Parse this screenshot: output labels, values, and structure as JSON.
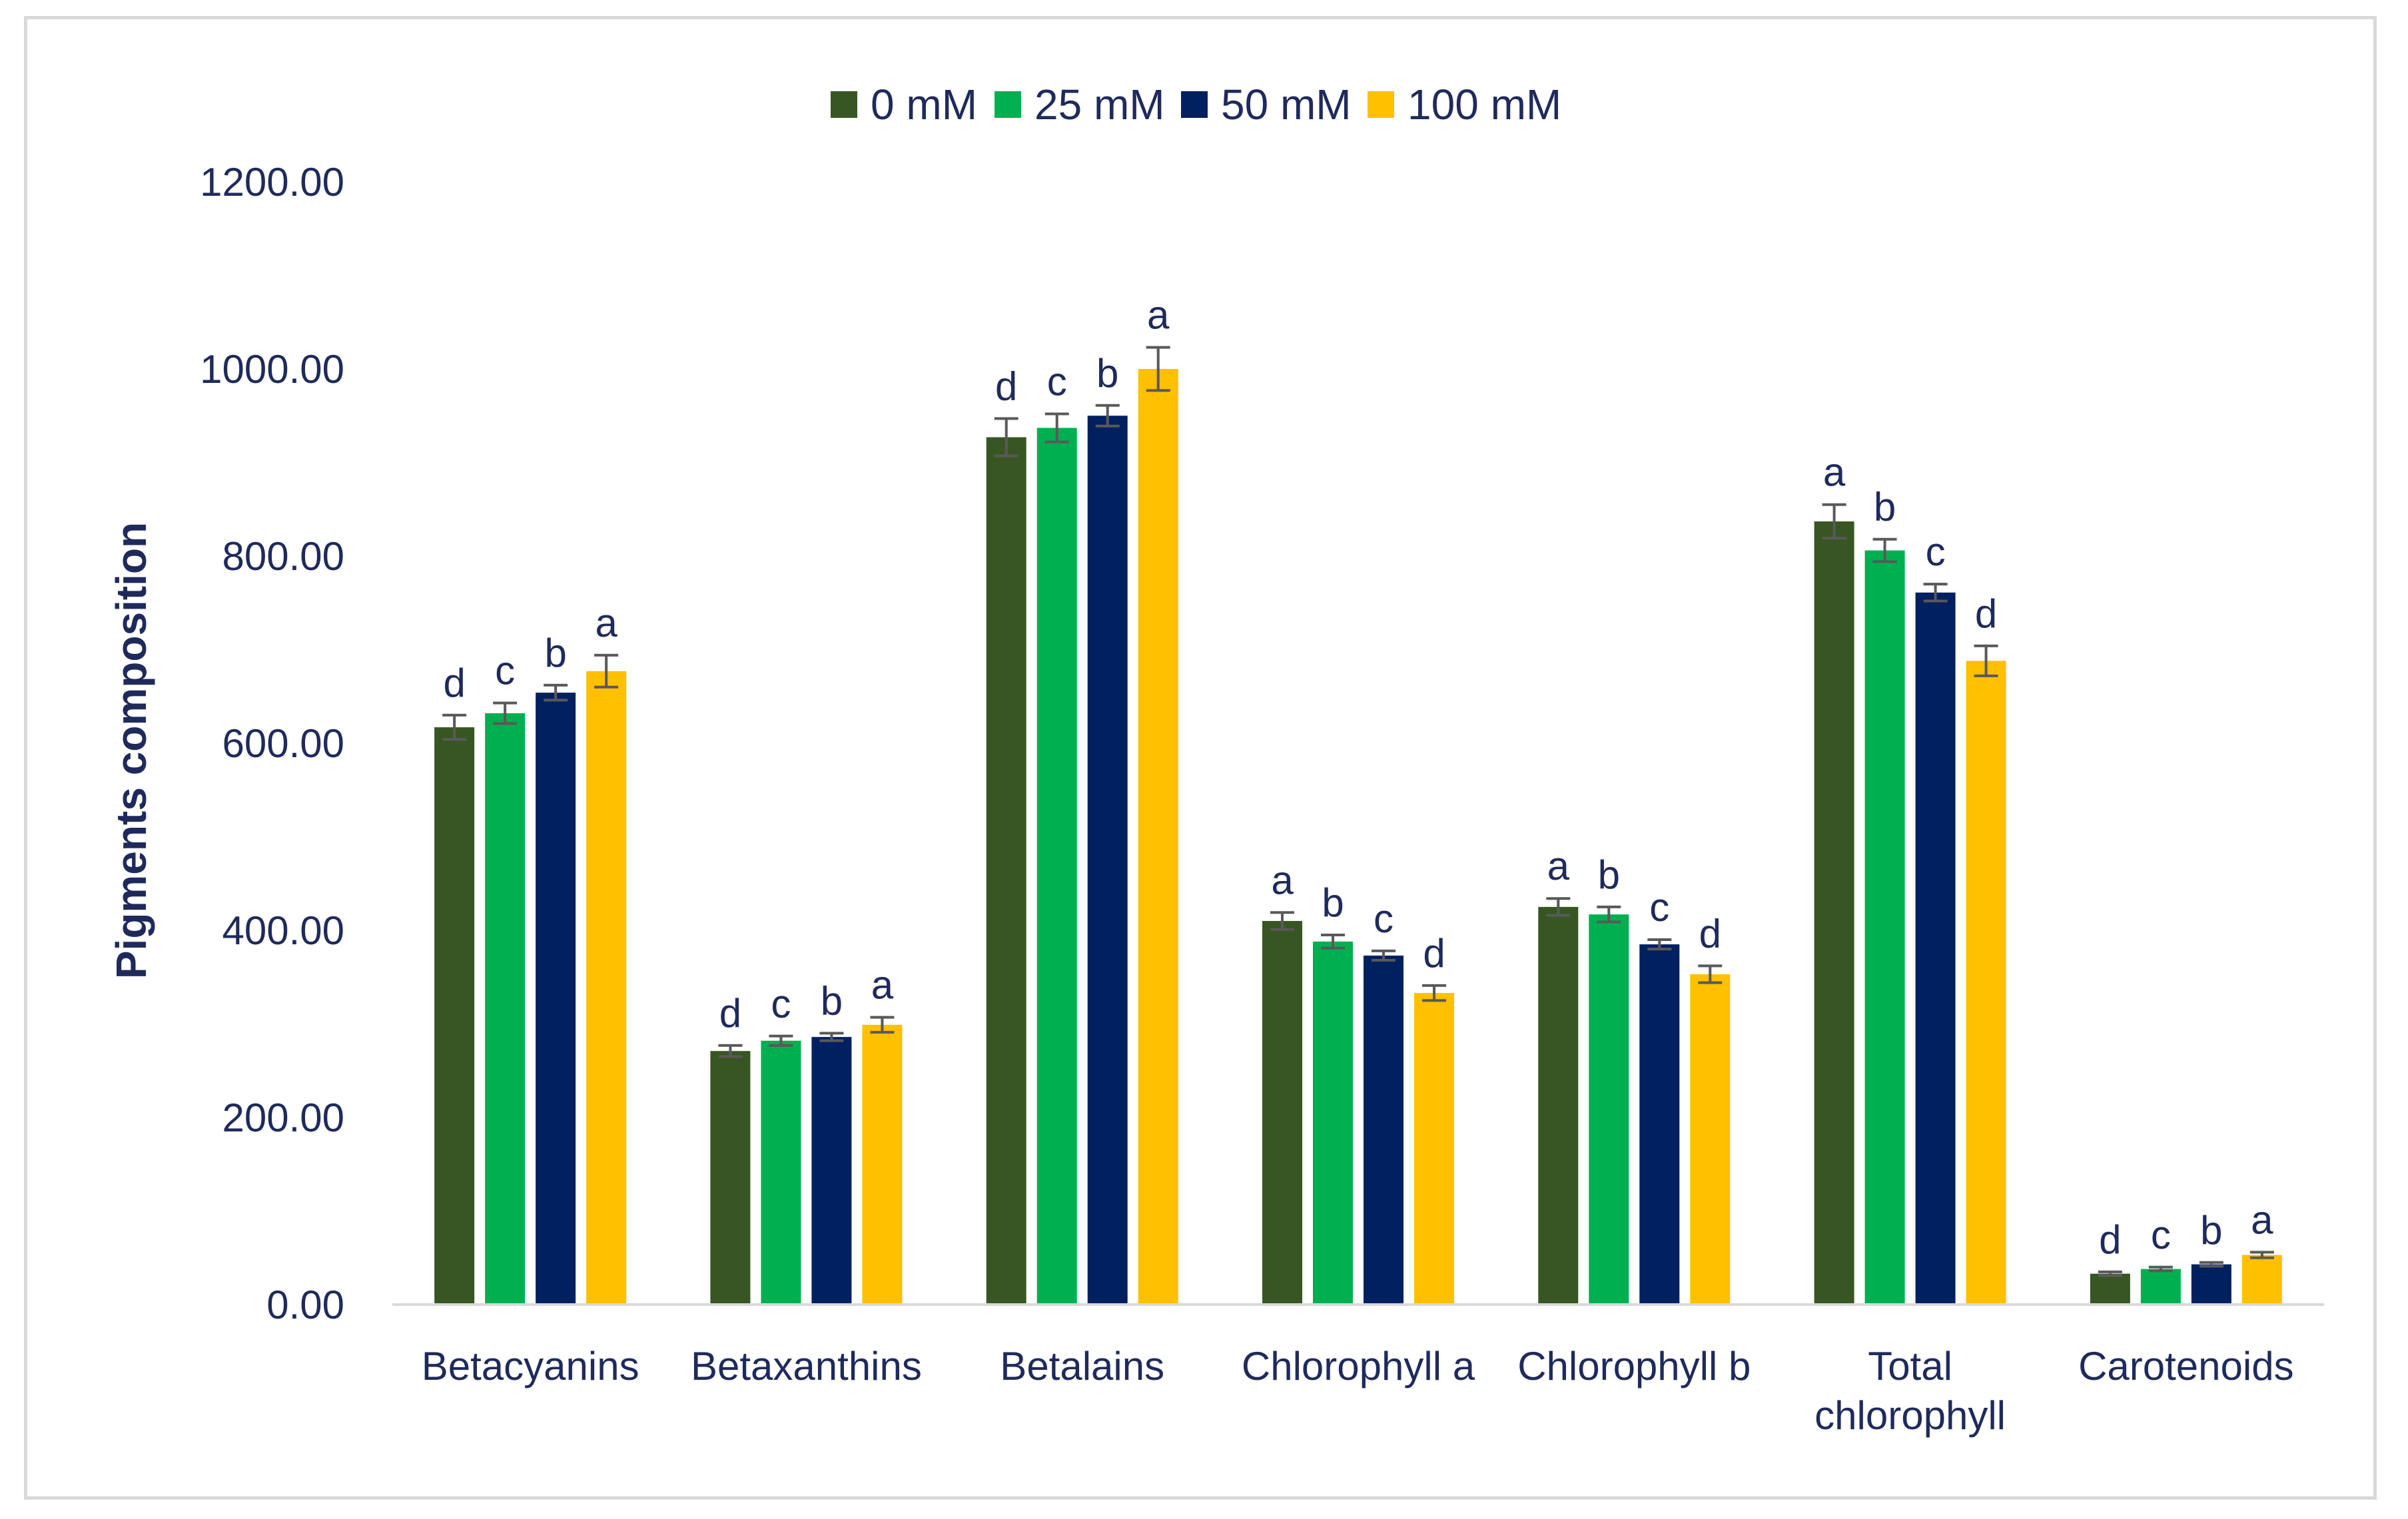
{
  "chart_data": {
    "type": "bar",
    "title": "",
    "xlabel": "",
    "ylabel": "Pigments composition",
    "ylim": [
      0,
      1200
    ],
    "ytick_values": [
      0,
      200,
      400,
      600,
      800,
      1000,
      1200
    ],
    "ytick_labels": [
      "0.00",
      "200.00",
      "400.00",
      "600.00",
      "800.00",
      "1000.00",
      "1200.00"
    ],
    "grid": false,
    "legend_position": "top-center",
    "categories": [
      [
        "Betacyanins"
      ],
      [
        "Betaxanthins"
      ],
      [
        "Betalains"
      ],
      [
        "Chlorophyll a"
      ],
      [
        "Chlorophyll b"
      ],
      [
        "Total",
        "chlorophyll"
      ],
      [
        "Carotenoids"
      ]
    ],
    "series": [
      {
        "name": "0 mM",
        "color": "#375623",
        "values": [
          617,
          271,
          927,
          410,
          425,
          837,
          33
        ],
        "errors": [
          13,
          6,
          20,
          9,
          9,
          18,
          2
        ],
        "letters": [
          "d",
          "d",
          "d",
          "a",
          "a",
          "a",
          "d"
        ]
      },
      {
        "name": "25 mM",
        "color": "#00b050",
        "values": [
          632,
          282,
          937,
          388,
          417,
          806,
          38
        ],
        "errors": [
          11,
          5,
          15,
          7,
          8,
          12,
          2
        ],
        "letters": [
          "c",
          "c",
          "c",
          "b",
          "b",
          "b",
          "c"
        ]
      },
      {
        "name": "50 mM",
        "color": "#002060",
        "values": [
          654,
          286,
          950,
          373,
          385,
          761,
          43
        ],
        "errors": [
          8,
          4,
          11,
          5,
          5,
          9,
          2
        ],
        "letters": [
          "b",
          "b",
          "b",
          "c",
          "c",
          "c",
          "b"
        ]
      },
      {
        "name": "100 mM",
        "color": "#ffc000",
        "values": [
          677,
          299,
          1000,
          333,
          353,
          688,
          53
        ],
        "errors": [
          17,
          8,
          23,
          8,
          9,
          16,
          3
        ],
        "letters": [
          "a",
          "a",
          "a",
          "d",
          "d",
          "d",
          "a"
        ]
      }
    ],
    "error_bar_color": "#595959",
    "text_color": "#1f2a5c",
    "axis_color": "#d9d9d9"
  }
}
